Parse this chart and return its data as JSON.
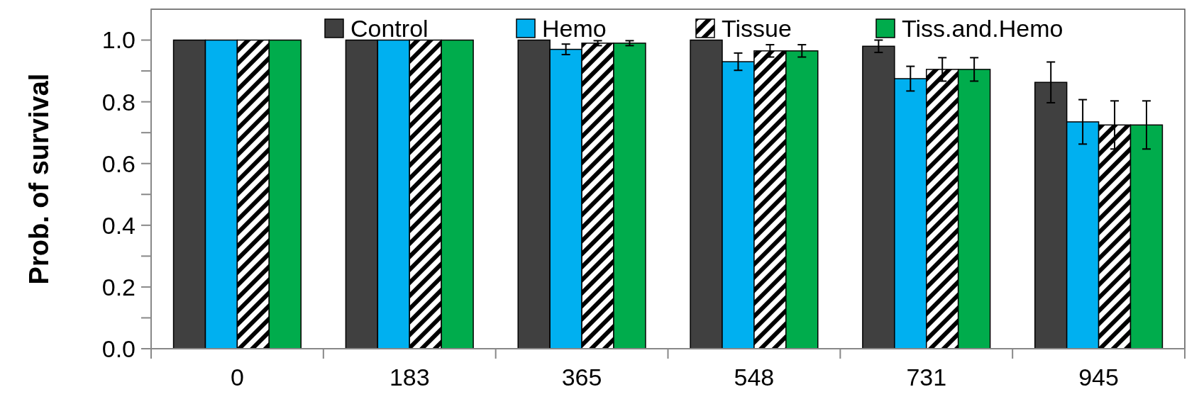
{
  "chart_data": {
    "type": "bar",
    "ylabel": "Prob. of survival",
    "categories": [
      "0",
      "183",
      "365",
      "548",
      "731",
      "945"
    ],
    "series": [
      {
        "name": "Control",
        "color": "#404040",
        "values": [
          1,
          1,
          1,
          1,
          0.98,
          0.863
        ],
        "errors": [
          null,
          null,
          null,
          null,
          0.02,
          0.066
        ]
      },
      {
        "name": "Hemo",
        "color": "#00b0f0",
        "values": [
          1,
          1,
          0.97,
          0.93,
          0.875,
          0.735
        ],
        "errors": [
          null,
          null,
          0.017,
          0.028,
          0.04,
          0.072
        ]
      },
      {
        "name": "Tissue",
        "color": "#000000",
        "values": [
          1,
          1,
          0.99,
          0.965,
          0.905,
          0.725
        ],
        "errors": [
          null,
          null,
          0.008,
          0.02,
          0.038,
          0.078
        ]
      },
      {
        "name": "Tiss.and.Hemo",
        "color": "#00ac4c",
        "values": [
          1,
          1,
          0.99,
          0.965,
          0.905,
          0.725
        ],
        "errors": [
          null,
          null,
          0.008,
          0.02,
          0.038,
          0.078
        ]
      }
    ],
    "ylim": [
      0,
      1.1
    ],
    "yticks": [
      "0.0",
      {
        "value": 0.1,
        "label": null
      },
      {
        "value": 0.2,
        "label": "0.2"
      },
      {
        "value": 0.3,
        "label": null
      },
      {
        "value": 0.4,
        "label": "0.4"
      },
      {
        "value": 0.5,
        "label": null
      },
      {
        "value": 0.6,
        "label": "0.6"
      },
      {
        "value": 0.7,
        "label": null
      },
      {
        "value": 0.8,
        "label": "0.8"
      },
      {
        "value": 0.9,
        "label": null
      },
      {
        "value": 1,
        "label": "1.0"
      }
    ],
    "legend": "top",
    "grid": false
  }
}
